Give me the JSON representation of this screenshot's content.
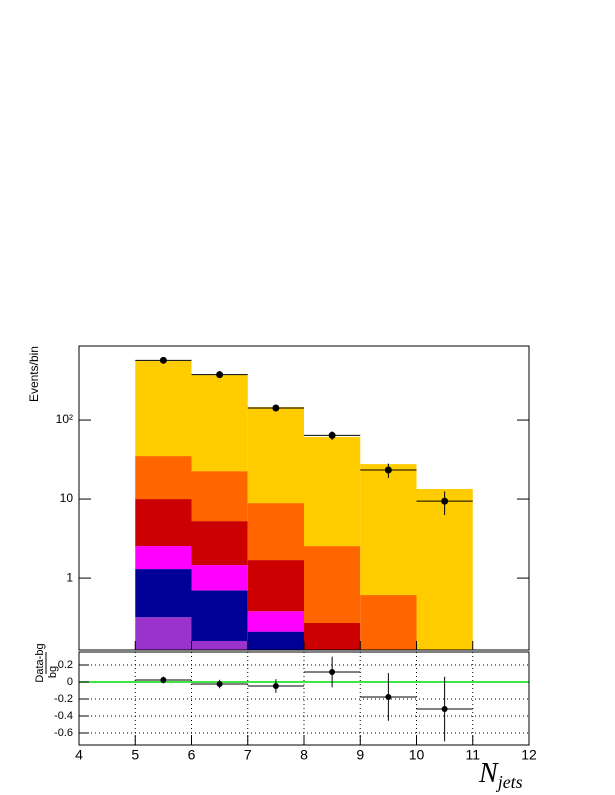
{
  "chart_data": [
    {
      "type": "histogram",
      "y_label": "Events/bin",
      "bins": [
        5,
        6,
        7,
        8,
        9,
        10,
        11
      ],
      "series": [
        {
          "color": "#9933cc",
          "values": [
            0.32,
            0.16,
            0,
            0,
            0,
            0
          ]
        },
        {
          "color": "#000099",
          "values": [
            0.98,
            0.54,
            0.21,
            0,
            0,
            0
          ]
        },
        {
          "color": "#ff00ff",
          "values": [
            1.24,
            0.76,
            0.17,
            0,
            0,
            0
          ]
        },
        {
          "color": "#cc0000",
          "values": [
            7.46,
            3.8,
            1.31,
            0.27,
            0,
            0
          ]
        },
        {
          "color": "#ff6600",
          "values": [
            25,
            17.3,
            7.2,
            2.27,
            0.61,
            0
          ]
        },
        {
          "color": "#ffcc00",
          "values": [
            523,
            348,
            137,
            58.5,
            27.1,
            13.4
          ]
        }
      ],
      "points": {
        "color": "#000000",
        "x": [
          5.5,
          6.5,
          7.5,
          8.5,
          9.5,
          10.5
        ],
        "values": [
          570,
          375,
          142,
          64,
          23.3,
          9.4
        ],
        "errors": [
          24,
          19,
          12,
          8,
          4.8,
          3.1
        ]
      },
      "log_y": true,
      "xlim": [
        4,
        12
      ],
      "xticks": [
        4,
        5,
        6,
        7,
        8,
        9,
        10,
        11,
        12
      ],
      "ylim": [
        0.123,
        865
      ],
      "yticks": [
        1,
        10,
        {
          "value": 100,
          "label": "10²"
        }
      ]
    },
    {
      "type": "scatter",
      "y_label": [
        "Data-bg",
        "bg"
      ],
      "x_label": [
        "N",
        "jets"
      ],
      "x": [
        5.5,
        6.5,
        7.5,
        8.5,
        9.5,
        10.5
      ],
      "values": [
        0.024,
        -0.024,
        -0.047,
        0.118,
        -0.176,
        -0.318
      ],
      "errors": [
        0.04,
        0.05,
        0.08,
        0.18,
        0.28,
        0.38
      ],
      "color": "#000000",
      "reference_line": 0,
      "reference_color": "#00dd00",
      "grid": true,
      "xlim": [
        4,
        12
      ],
      "xticks": [
        4,
        5,
        6,
        7,
        8,
        9,
        10,
        11,
        12
      ],
      "ylim": [
        -0.741,
        0.353
      ],
      "yticks": [
        0.2,
        0,
        -0.2,
        -0.4,
        -0.6
      ]
    }
  ]
}
